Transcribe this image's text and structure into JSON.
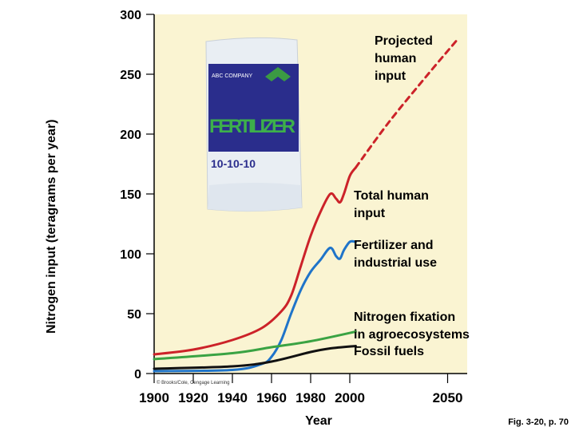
{
  "chart_data": {
    "type": "line",
    "xlabel": "Year",
    "ylabel": "Nitrogen input (teragrams per year)",
    "xlim": [
      1900,
      2060
    ],
    "ylim": [
      0,
      300
    ],
    "x_ticks": [
      "1900",
      "1920",
      "1940",
      "1960",
      "1980",
      "2000",
      "2050"
    ],
    "y_ticks": [
      "0",
      "50",
      "100",
      "150",
      "200",
      "250",
      "300"
    ],
    "grid": false,
    "series": [
      {
        "name": "Total human input",
        "color": "#cc2229",
        "style": "solid",
        "x": [
          1900,
          1920,
          1940,
          1955,
          1965,
          1970,
          1975,
          1980,
          1985,
          1990,
          1993,
          1995,
          1997,
          2000,
          2003
        ],
        "values": [
          16,
          20,
          28,
          38,
          52,
          65,
          90,
          115,
          135,
          150,
          146,
          143,
          150,
          165,
          172
        ]
      },
      {
        "name": "Projected human input",
        "color": "#cc2229",
        "style": "dashed",
        "x": [
          2003,
          2020,
          2040,
          2055
        ],
        "values": [
          172,
          210,
          250,
          279
        ]
      },
      {
        "name": "Fertilizer and industrial use",
        "color": "#1f74c9",
        "style": "solid",
        "x": [
          1900,
          1940,
          1955,
          1960,
          1965,
          1970,
          1975,
          1980,
          1985,
          1990,
          1993,
          1995,
          1997,
          2000,
          2003
        ],
        "values": [
          2,
          3,
          8,
          14,
          28,
          50,
          70,
          85,
          95,
          105,
          98,
          96,
          103,
          110,
          110
        ]
      },
      {
        "name": "Nitrogen fixation in agroecosystems",
        "color": "#3aa343",
        "style": "solid",
        "x": [
          1900,
          1940,
          1960,
          1980,
          2003
        ],
        "values": [
          12,
          17,
          22,
          27,
          35
        ]
      },
      {
        "name": "Fossil fuels",
        "color": "#111111",
        "style": "solid",
        "x": [
          1900,
          1940,
          1960,
          1980,
          1990,
          2003
        ],
        "values": [
          4,
          6,
          10,
          18,
          21,
          23
        ]
      }
    ],
    "annotations": {
      "projected": [
        "Projected",
        "human",
        "input"
      ],
      "total": [
        "Total human",
        "input"
      ],
      "fertilizer": [
        "Fertilizer and",
        "industrial use"
      ],
      "fixation": [
        "Nitrogen fixation",
        "in agroecosystems"
      ],
      "fossil": [
        "Fossil fuels"
      ]
    }
  },
  "image": {
    "company": "ABC COMPANY",
    "product": "FERTILIZER",
    "formula": "10-10-10"
  },
  "credit": "© Brooks/Cole, Cengage Learning",
  "figure_ref": "Fig. 3-20, p. 70"
}
